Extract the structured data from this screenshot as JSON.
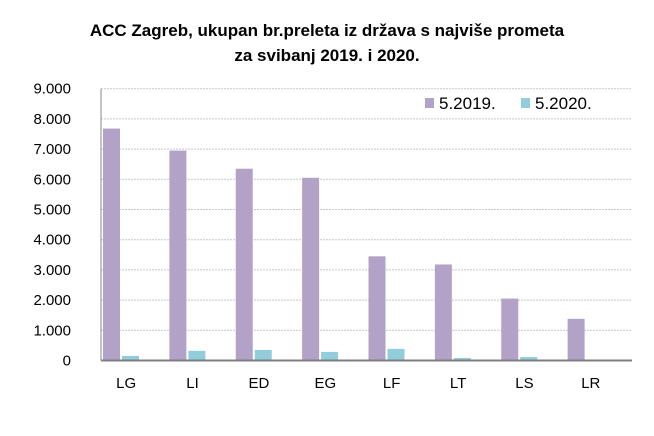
{
  "chart_data": {
    "type": "bar",
    "title": [
      "ACC Zagreb, ukupan br.preleta iz država s najviše prometa",
      "za svibanj 2019. i 2020."
    ],
    "categories": [
      "LG",
      "LI",
      "ED",
      "EG",
      "LF",
      "LT",
      "LS",
      "LR"
    ],
    "series": [
      {
        "name": "5.2019.",
        "color": "#b2a2c7",
        "values": [
          7680,
          6950,
          6350,
          6050,
          3450,
          3180,
          2050,
          1380
        ]
      },
      {
        "name": "5.2020.",
        "color": "#92cddc",
        "values": [
          150,
          320,
          350,
          285,
          385,
          85,
          115,
          0
        ]
      }
    ],
    "ylim": [
      0,
      9000
    ],
    "yticks": [
      "0",
      "1.000",
      "2.000",
      "3.000",
      "4.000",
      "5.000",
      "6.000",
      "7.000",
      "8.000",
      "9.000"
    ],
    "grid": true,
    "legend": "top-right",
    "xlabel": "",
    "ylabel": ""
  }
}
